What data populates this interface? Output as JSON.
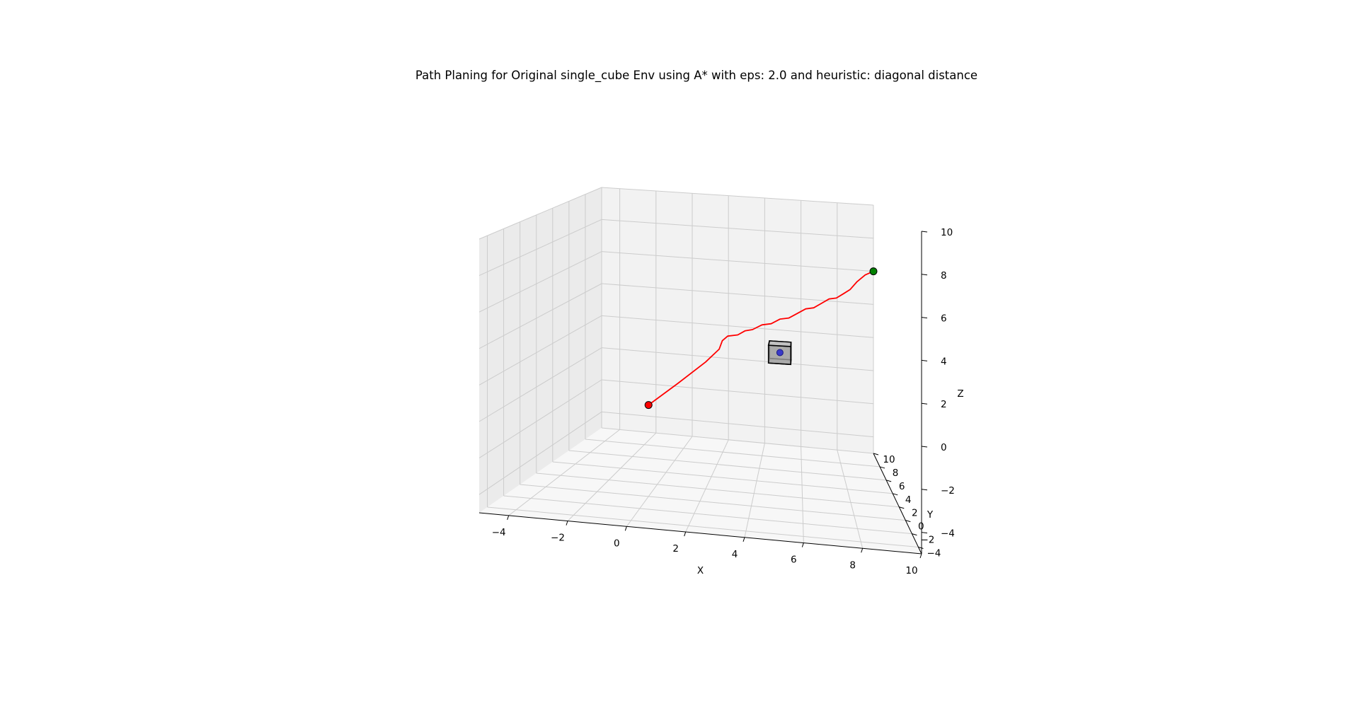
{
  "chart_data": {
    "type": "3d-line",
    "title": "Path Planing for Original single_cube Env using A* with eps: 2.0 and heuristic: diagonal distance",
    "xlabel": "X",
    "ylabel": "Y",
    "zlabel": "Z",
    "xlim": [
      -5,
      10
    ],
    "ylim": [
      -5,
      10
    ],
    "zlim": [
      -5,
      10
    ],
    "xticks": [
      -4,
      -2,
      0,
      2,
      4,
      6,
      8,
      10
    ],
    "yticks": [
      -4,
      -2,
      0,
      2,
      4,
      6,
      8,
      10
    ],
    "zticks": [
      -4,
      -2,
      0,
      2,
      4,
      6,
      8,
      10
    ],
    "grid": true,
    "path": {
      "color": "#ff0000",
      "points": [
        [
          0.0,
          0.0,
          0.0
        ],
        [
          1.0,
          1.0,
          1.0
        ],
        [
          2.0,
          2.0,
          2.0
        ],
        [
          2.5,
          2.6,
          2.6
        ],
        [
          2.6,
          2.9,
          3.0
        ],
        [
          2.8,
          3.2,
          3.2
        ],
        [
          3.2,
          3.6,
          3.2
        ],
        [
          3.5,
          3.8,
          3.4
        ],
        [
          3.8,
          4.2,
          3.4
        ],
        [
          4.2,
          4.6,
          3.6
        ],
        [
          4.6,
          5.0,
          3.6
        ],
        [
          5.0,
          5.4,
          3.8
        ],
        [
          5.4,
          5.8,
          3.8
        ],
        [
          5.8,
          6.2,
          4.0
        ],
        [
          6.2,
          6.6,
          4.2
        ],
        [
          6.6,
          7.0,
          4.2
        ],
        [
          7.0,
          7.4,
          4.4
        ],
        [
          7.4,
          7.8,
          4.6
        ],
        [
          7.8,
          8.2,
          4.6
        ],
        [
          8.2,
          8.6,
          4.8
        ],
        [
          8.6,
          9.0,
          5.0
        ],
        [
          9.0,
          9.4,
          5.4
        ],
        [
          9.5,
          9.7,
          5.8
        ],
        [
          10.0,
          10.0,
          6.0
        ]
      ]
    },
    "start": {
      "point": [
        0,
        0,
        0
      ],
      "color": "#ff0000"
    },
    "goal": {
      "point": [
        10,
        10,
        6
      ],
      "color": "#008000"
    },
    "obstacle": {
      "type": "cube",
      "min": [
        4.5,
        4.5,
        1.5
      ],
      "max": [
        5.5,
        5.5,
        2.5
      ],
      "center": [
        5,
        5,
        2
      ],
      "face_color": "#a6a6a6",
      "center_color": "#3a3ac8"
    },
    "colors": {
      "pane_left": "#ebebeb",
      "pane_back": "#f2f2f2",
      "pane_floor": "#f7f7f7",
      "grid": "#cccccc"
    }
  }
}
